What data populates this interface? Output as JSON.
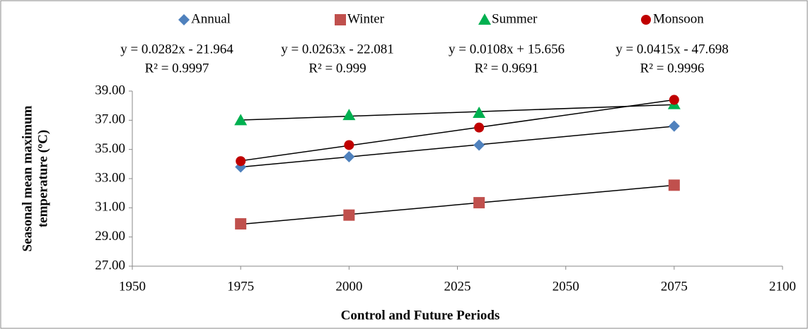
{
  "chart_data": {
    "type": "scatter",
    "x_title": "Control and Future Periods",
    "y_title": [
      "Seasonal  mean maximum",
      "temperature (ºC)"
    ],
    "x": [
      1975,
      2000,
      2030,
      2075
    ],
    "series": [
      {
        "name": "Annual",
        "color": "#4f81bd",
        "marker": "diamond",
        "values": [
          33.8,
          34.5,
          35.3,
          36.6
        ],
        "equation": "y = 0.0282x - 21.964",
        "r2": "R² = 0.9997"
      },
      {
        "name": "Winter",
        "color": "#c0504d",
        "marker": "square",
        "values": [
          29.9,
          30.5,
          31.35,
          32.55
        ],
        "equation": "y = 0.0263x - 22.081",
        "r2": "R² = 0.999"
      },
      {
        "name": "Summer",
        "color": "#00b050",
        "marker": "triangle",
        "values": [
          37.0,
          37.35,
          37.5,
          38.1
        ],
        "equation": "y = 0.0108x + 15.656",
        "r2": "R² = 0.9691"
      },
      {
        "name": "Monsoon",
        "color": "#c00000",
        "marker": "circle",
        "values": [
          34.2,
          35.3,
          36.5,
          38.4
        ],
        "equation": "y = 0.0415x - 47.698",
        "r2": "R² = 0.9996"
      }
    ],
    "trendline": true,
    "trendline_color": "#000000",
    "legend": "top",
    "xlim": [
      1950,
      2100
    ],
    "xticks": [
      1950,
      1975,
      2000,
      2025,
      2050,
      2075,
      2100
    ],
    "ylim": [
      27,
      39
    ],
    "yticks": [
      {
        "value": 27,
        "label": "27.00"
      },
      {
        "value": 29,
        "label": "29.00"
      },
      {
        "value": 31,
        "label": "31.00"
      },
      {
        "value": 33,
        "label": "33.00"
      },
      {
        "value": 35,
        "label": "35.00"
      },
      {
        "value": 37,
        "label": "37.00"
      },
      {
        "value": 39,
        "label": "39.00"
      }
    ]
  }
}
